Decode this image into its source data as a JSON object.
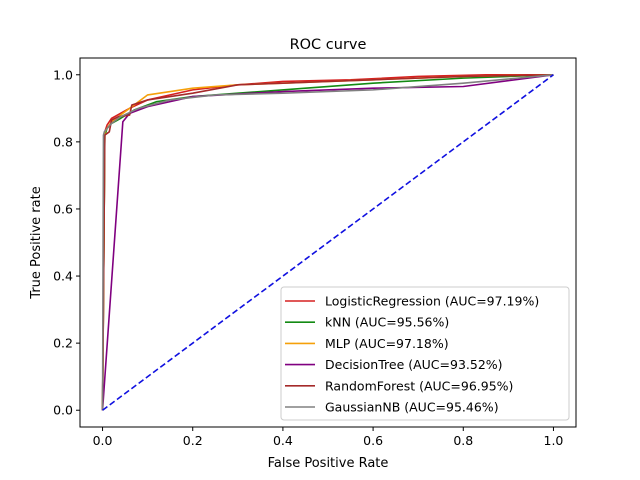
{
  "chart_data": {
    "type": "line",
    "title": "ROC curve",
    "xlabel": "False Positive Rate",
    "ylabel": "True Positive rate",
    "xlim": [
      -0.05,
      1.05
    ],
    "ylim": [
      -0.05,
      1.05
    ],
    "xticks": [
      0.0,
      0.2,
      0.4,
      0.6,
      0.8,
      1.0
    ],
    "xtick_labels": [
      "0.0",
      "0.2",
      "0.4",
      "0.6",
      "0.8",
      "1.0"
    ],
    "yticks": [
      0.0,
      0.2,
      0.4,
      0.6,
      0.8,
      1.0
    ],
    "ytick_labels": [
      "0.0",
      "0.2",
      "0.4",
      "0.6",
      "0.8",
      "1.0"
    ],
    "grid": false,
    "legend_position": "lower right",
    "series": [
      {
        "name": "LogisticRegression (AUC=97.19%)",
        "color": "#d62020",
        "x": [
          0,
          0.005,
          0.01,
          0.02,
          0.04,
          0.06,
          0.1,
          0.15,
          0.2,
          0.3,
          0.4,
          0.55,
          0.7,
          0.85,
          1.0
        ],
        "y": [
          0,
          0.83,
          0.85,
          0.87,
          0.885,
          0.9,
          0.925,
          0.94,
          0.955,
          0.97,
          0.98,
          0.985,
          0.995,
          1.0,
          1.0
        ]
      },
      {
        "name": "kNN (AUC=95.56%)",
        "color": "#138a13",
        "x": [
          0,
          0.005,
          0.01,
          0.02,
          0.04,
          0.07,
          0.12,
          0.2,
          0.3,
          0.45,
          0.6,
          0.8,
          1.0
        ],
        "y": [
          0,
          0.82,
          0.84,
          0.855,
          0.87,
          0.895,
          0.92,
          0.935,
          0.945,
          0.96,
          0.975,
          0.99,
          1.0
        ]
      },
      {
        "name": "MLP (AUC=97.18%)",
        "color": "#f5a00a",
        "x": [
          0,
          0.005,
          0.01,
          0.02,
          0.04,
          0.07,
          0.1,
          0.15,
          0.2,
          0.3,
          0.4,
          0.6,
          0.8,
          1.0
        ],
        "y": [
          0,
          0.83,
          0.84,
          0.86,
          0.88,
          0.91,
          0.94,
          0.95,
          0.96,
          0.97,
          0.975,
          0.985,
          0.995,
          1.0
        ]
      },
      {
        "name": "DecisionTree (AUC=93.52%)",
        "color": "#800080",
        "x": [
          0,
          0.045,
          0.06,
          0.1,
          0.2,
          0.4,
          0.6,
          0.8,
          1.0
        ],
        "y": [
          0,
          0.86,
          0.885,
          0.905,
          0.935,
          0.95,
          0.96,
          0.965,
          1.0
        ]
      },
      {
        "name": "RandomForest (AUC=96.95%)",
        "color": "#a52a2a",
        "x": [
          0,
          0.005,
          0.015,
          0.02,
          0.035,
          0.06,
          0.065,
          0.1,
          0.15,
          0.2,
          0.3,
          0.4,
          0.5,
          0.6,
          0.7,
          0.8,
          1.0
        ],
        "y": [
          0,
          0.82,
          0.83,
          0.865,
          0.875,
          0.88,
          0.91,
          0.925,
          0.935,
          0.945,
          0.97,
          0.975,
          0.98,
          0.985,
          0.99,
          0.995,
          1.0
        ]
      },
      {
        "name": "GaussianNB (AUC=95.46%)",
        "color": "#808080",
        "x": [
          0,
          0.002,
          0.004,
          0.01,
          0.02,
          0.04,
          0.08,
          0.15,
          0.25,
          0.4,
          0.6,
          0.8,
          1.0
        ],
        "y": [
          0,
          0.82,
          0.83,
          0.84,
          0.855,
          0.875,
          0.9,
          0.925,
          0.94,
          0.945,
          0.955,
          0.975,
          1.0
        ]
      },
      {
        "name": "",
        "color": "#1010e0",
        "dashed": true,
        "x": [
          0,
          1
        ],
        "y": [
          0,
          1
        ]
      }
    ]
  }
}
